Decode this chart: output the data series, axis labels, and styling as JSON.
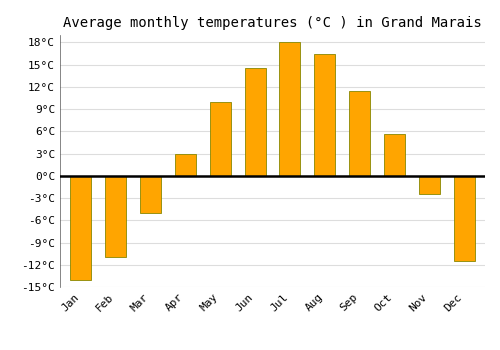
{
  "title": "Average monthly temperatures (°C ) in Grand Marais",
  "months": [
    "Jan",
    "Feb",
    "Mar",
    "Apr",
    "May",
    "Jun",
    "Jul",
    "Aug",
    "Sep",
    "Oct",
    "Nov",
    "Dec"
  ],
  "values": [
    -14,
    -11,
    -5,
    3,
    10,
    14.5,
    18,
    16.5,
    11.5,
    5.7,
    -2.5,
    -11.5
  ],
  "bar_color": "#FFA500",
  "bar_edge_color": "#888800",
  "ylim": [
    -15,
    19
  ],
  "yticks": [
    -15,
    -12,
    -9,
    -6,
    -3,
    0,
    3,
    6,
    9,
    12,
    15,
    18
  ],
  "ytick_labels": [
    "-15°C",
    "-12°C",
    "-9°C",
    "-6°C",
    "-3°C",
    "0°C",
    "3°C",
    "6°C",
    "9°C",
    "12°C",
    "15°C",
    "18°C"
  ],
  "plot_bg_color": "#ffffff",
  "fig_bg_color": "#ffffff",
  "grid_color": "#dddddd",
  "zero_line_color": "#000000",
  "title_fontsize": 10,
  "tick_fontsize": 8,
  "bar_width": 0.6
}
